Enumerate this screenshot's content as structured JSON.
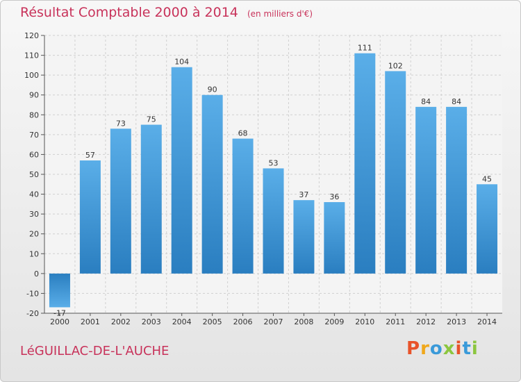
{
  "chart_data": {
    "type": "bar",
    "title": "Résultat Comptable 2000 à 2014",
    "unit": "(en milliers d'€)",
    "categories": [
      "2000",
      "2001",
      "2002",
      "2003",
      "2004",
      "2005",
      "2006",
      "2007",
      "2008",
      "2009",
      "2010",
      "2011",
      "2012",
      "2013",
      "2014"
    ],
    "values": [
      -17,
      57,
      73,
      75,
      104,
      90,
      68,
      53,
      37,
      36,
      111,
      102,
      84,
      84,
      45
    ],
    "value_labels": [
      "-17",
      "57",
      "73",
      "75",
      "104",
      "90",
      "68",
      "53",
      "37",
      "36",
      "111",
      "102",
      "84",
      "84",
      "45"
    ],
    "ylim": [
      -20,
      120
    ],
    "yticks": [
      -20,
      -10,
      0,
      10,
      20,
      30,
      40,
      50,
      60,
      70,
      80,
      90,
      100,
      110,
      120
    ],
    "ytick_labels": [
      "-20",
      "-10",
      "0",
      "10",
      "20",
      "30",
      "40",
      "50",
      "60",
      "70",
      "80",
      "90",
      "100",
      "110",
      "120"
    ],
    "xlabel": "",
    "ylabel": "",
    "grid": true,
    "colors": {
      "bar_light": "#5aaee8",
      "bar_dark": "#2a7ec0",
      "title": "#c8325a",
      "grid": "#d0d0d0"
    }
  },
  "footer": {
    "commune": "LéGUILLAC-DE-L'AUCHE",
    "brand": "Proxiti",
    "brand_colors": [
      "#e8532a",
      "#f0a81c",
      "#3a9ad9",
      "#8cc63f",
      "#e8532a",
      "#3a9ad9",
      "#8cc63f"
    ]
  }
}
